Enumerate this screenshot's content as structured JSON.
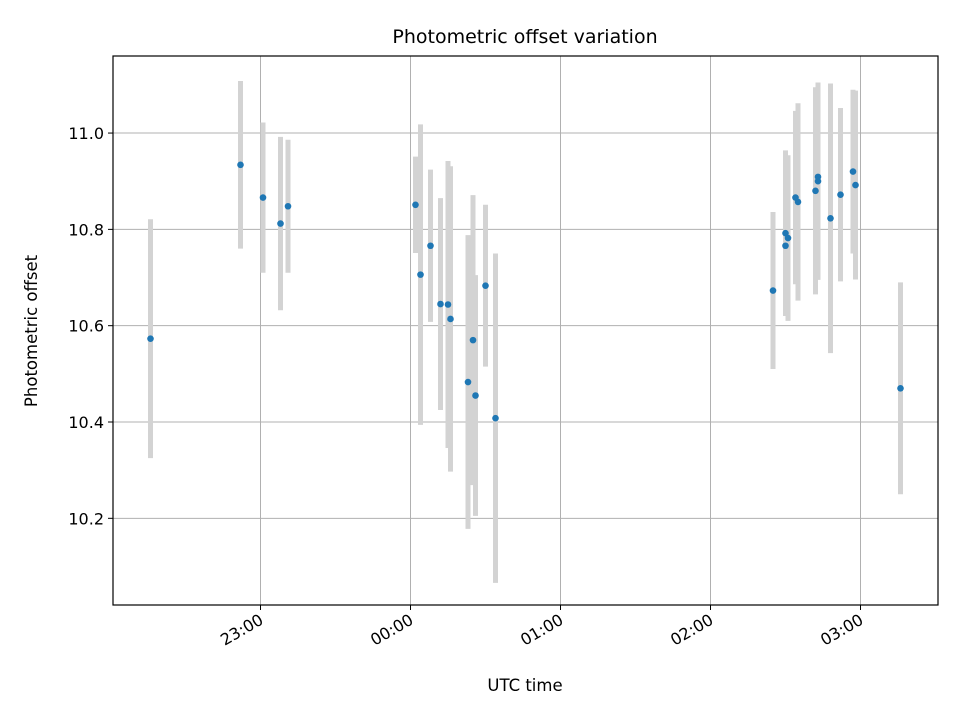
{
  "chart_data": {
    "type": "scatter",
    "title": "Photometric offset variation",
    "xlabel": "UTC time",
    "ylabel": "Photometric offset",
    "x_is_time": true,
    "xlim": [
      "22:01",
      "03:31"
    ],
    "ylim": [
      10.02,
      11.16
    ],
    "xticks": [
      "23:00",
      "00:00",
      "01:00",
      "02:00",
      "03:00"
    ],
    "yticks": [
      10.2,
      10.4,
      10.6,
      10.8,
      11.0
    ],
    "ytick_labels": [
      "10.2",
      "10.4",
      "10.6",
      "10.8",
      "11.0"
    ],
    "grid": true,
    "marker_color": "#1f77b4",
    "errorbar_color": "#d3d3d3",
    "points": [
      {
        "x": "22:16",
        "y": 10.573,
        "err": 0.248
      },
      {
        "x": "22:52",
        "y": 10.934,
        "err": 0.174
      },
      {
        "x": "23:01",
        "y": 10.866,
        "err": 0.156
      },
      {
        "x": "23:08",
        "y": 10.812,
        "err": 0.18
      },
      {
        "x": "23:11",
        "y": 10.848,
        "err": 0.138
      },
      {
        "x": "00:02",
        "y": 10.851,
        "err": 0.1
      },
      {
        "x": "00:04",
        "y": 10.706,
        "err": 0.312
      },
      {
        "x": "00:08",
        "y": 10.766,
        "err": 0.158
      },
      {
        "x": "00:12",
        "y": 10.645,
        "err": 0.22
      },
      {
        "x": "00:15",
        "y": 10.644,
        "err": 0.298
      },
      {
        "x": "00:16",
        "y": 10.614,
        "err": 0.317
      },
      {
        "x": "00:23",
        "y": 10.483,
        "err": 0.305
      },
      {
        "x": "00:25",
        "y": 10.57,
        "err": 0.301
      },
      {
        "x": "00:26",
        "y": 10.455,
        "err": 0.25
      },
      {
        "x": "00:30",
        "y": 10.683,
        "err": 0.168
      },
      {
        "x": "00:34",
        "y": 10.408,
        "err": 0.342
      },
      {
        "x": "02:25",
        "y": 10.673,
        "err": 0.163
      },
      {
        "x": "02:30",
        "y": 10.792,
        "err": 0.172
      },
      {
        "x": "02:30",
        "y": 10.766,
        "err": 0.145
      },
      {
        "x": "02:31",
        "y": 10.782,
        "err": 0.172
      },
      {
        "x": "02:34",
        "y": 10.866,
        "err": 0.18
      },
      {
        "x": "02:35",
        "y": 10.857,
        "err": 0.205
      },
      {
        "x": "02:42",
        "y": 10.88,
        "err": 0.215
      },
      {
        "x": "02:43",
        "y": 10.9,
        "err": 0.205
      },
      {
        "x": "02:43",
        "y": 10.909,
        "err": 0.195
      },
      {
        "x": "02:48",
        "y": 10.823,
        "err": 0.28
      },
      {
        "x": "02:52",
        "y": 10.872,
        "err": 0.18
      },
      {
        "x": "02:57",
        "y": 10.92,
        "err": 0.17
      },
      {
        "x": "02:58",
        "y": 10.892,
        "err": 0.196
      },
      {
        "x": "03:16",
        "y": 10.47,
        "err": 0.22
      }
    ]
  }
}
